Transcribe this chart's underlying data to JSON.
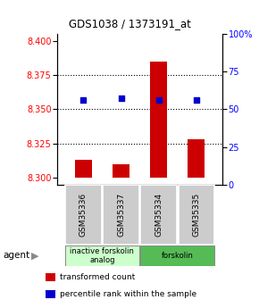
{
  "title": "GDS1038 / 1373191_at",
  "samples": [
    "GSM35336",
    "GSM35337",
    "GSM35334",
    "GSM35335"
  ],
  "bar_values": [
    8.313,
    8.31,
    8.385,
    8.328
  ],
  "percentile_values": [
    8.357,
    8.358,
    8.357,
    8.357
  ],
  "bar_base": 8.3,
  "ylim_left": [
    8.295,
    8.405
  ],
  "ylim_right": [
    0,
    100
  ],
  "yticks_left": [
    8.3,
    8.325,
    8.35,
    8.375,
    8.4
  ],
  "yticks_right": [
    0,
    25,
    50,
    75,
    100
  ],
  "bar_color": "#cc0000",
  "percentile_color": "#0000cc",
  "bg_color": "#ffffff",
  "plot_bg": "#ffffff",
  "agent_groups": [
    {
      "label": "inactive forskolin\nanalog",
      "samples": [
        0,
        1
      ],
      "color": "#ccffcc"
    },
    {
      "label": "forskolin",
      "samples": [
        2,
        3
      ],
      "color": "#55bb55"
    }
  ],
  "legend_items": [
    {
      "color": "#cc0000",
      "label": "transformed count"
    },
    {
      "color": "#0000cc",
      "label": "percentile rank within the sample"
    }
  ],
  "grid_yticks": [
    8.325,
    8.35,
    8.375
  ]
}
